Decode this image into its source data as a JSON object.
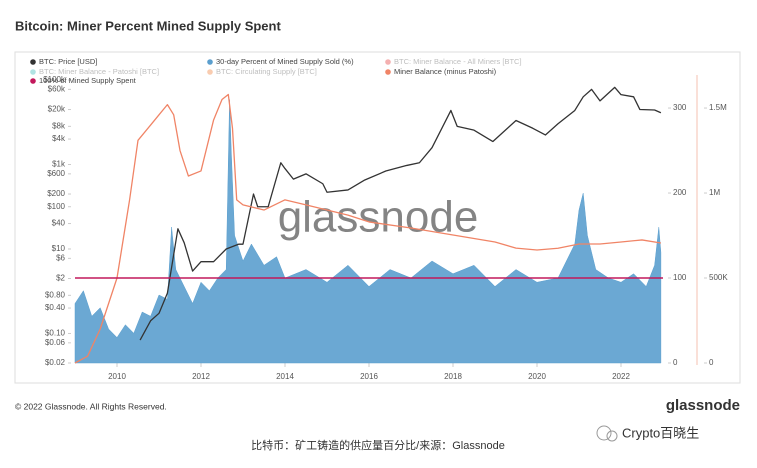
{
  "chart_data": {
    "type": "combo",
    "title": "Bitcoin: Miner Percent Mined Supply Spent",
    "watermark": "glassnode",
    "xlim": [
      2009,
      2023
    ],
    "xticks": [
      2010,
      2012,
      2014,
      2016,
      2018,
      2020,
      2022
    ],
    "ylim": [
      0.02,
      100000
    ],
    "ylog": true,
    "yticks": [
      {
        "value": 0.02,
        "label": "$0.02"
      },
      {
        "value": 0.06,
        "label": "$0.06"
      },
      {
        "value": 0.1,
        "label": "$0.10"
      },
      {
        "value": 0.4,
        "label": "$0.40"
      },
      {
        "value": 0.8,
        "label": "$0.80"
      },
      {
        "value": 2,
        "label": "$2"
      },
      {
        "value": 6,
        "label": "$6"
      },
      {
        "value": 10,
        "label": "$10"
      },
      {
        "value": 40,
        "label": "$40"
      },
      {
        "value": 100,
        "label": "$100"
      },
      {
        "value": 200,
        "label": "$200"
      },
      {
        "value": 600,
        "label": "$600"
      },
      {
        "value": 1000,
        "label": "$1k"
      },
      {
        "value": 4000,
        "label": "$4k"
      },
      {
        "value": 8000,
        "label": "$8k"
      },
      {
        "value": 20000,
        "label": "$20k"
      },
      {
        "value": 60000,
        "label": "$60k"
      },
      {
        "value": 100000,
        "label": "$100k"
      }
    ],
    "y2lim": [
      0,
      333
    ],
    "y2ticks": [
      0,
      100,
      200,
      300
    ],
    "y3lim": [
      0,
      1665000
    ],
    "y3ticks": [
      0,
      {
        "value": 500000,
        "label": "500K"
      },
      {
        "value": 1000000,
        "label": "1M"
      },
      {
        "value": 1500000,
        "label": "1.5M"
      }
    ],
    "series": [
      {
        "name": "BTC: Price [USD]",
        "type": "line",
        "axis": "y",
        "color": "#333333",
        "x": [
          2010.55,
          2010.8,
          2011.0,
          2011.2,
          2011.45,
          2011.6,
          2011.8,
          2012.0,
          2012.3,
          2012.6,
          2012.9,
          2013.0,
          2013.25,
          2013.35,
          2013.6,
          2013.9,
          2014.0,
          2014.2,
          2014.5,
          2014.9,
          2015.0,
          2015.5,
          2015.9,
          2016.4,
          2016.9,
          2017.2,
          2017.5,
          2017.95,
          2018.1,
          2018.5,
          2018.95,
          2019.5,
          2019.9,
          2020.2,
          2020.5,
          2020.9,
          2021.1,
          2021.3,
          2021.5,
          2021.85,
          2022.0,
          2022.3,
          2022.45,
          2022.8,
          2022.95
        ],
        "values": [
          0.07,
          0.2,
          0.3,
          0.9,
          30,
          14,
          3,
          5,
          5,
          10,
          13,
          13,
          200,
          100,
          100,
          1100,
          800,
          450,
          600,
          350,
          220,
          250,
          430,
          700,
          950,
          1100,
          2500,
          19000,
          8000,
          6500,
          3500,
          11000,
          7200,
          5000,
          9200,
          19000,
          40000,
          60000,
          32000,
          67000,
          45000,
          40000,
          20000,
          19500,
          16800
        ]
      },
      {
        "name": "30-day Percent of Mined Supply Sold (%)",
        "type": "area",
        "axis": "y2",
        "color": "#5b9fce",
        "x": [
          2009.0,
          2009.2,
          2009.4,
          2009.6,
          2009.8,
          2010.0,
          2010.2,
          2010.4,
          2010.6,
          2010.8,
          2011.0,
          2011.2,
          2011.3,
          2011.4,
          2011.6,
          2011.8,
          2012.0,
          2012.2,
          2012.4,
          2012.6,
          2012.68,
          2012.72,
          2012.8,
          2013.0,
          2013.2,
          2013.5,
          2013.8,
          2014.0,
          2014.5,
          2015.0,
          2015.5,
          2016.0,
          2016.5,
          2017.0,
          2017.5,
          2018.0,
          2018.5,
          2019.0,
          2019.5,
          2020.0,
          2020.5,
          2020.9,
          2021.0,
          2021.1,
          2021.2,
          2021.4,
          2021.7,
          2022.0,
          2022.3,
          2022.6,
          2022.8,
          2022.9,
          2022.95
        ],
        "values": [
          70,
          85,
          55,
          65,
          40,
          30,
          45,
          35,
          60,
          55,
          80,
          75,
          160,
          110,
          90,
          70,
          95,
          85,
          100,
          110,
          310,
          250,
          150,
          120,
          140,
          115,
          125,
          100,
          110,
          95,
          115,
          90,
          110,
          100,
          120,
          105,
          115,
          90,
          110,
          95,
          100,
          140,
          180,
          200,
          150,
          110,
          100,
          95,
          105,
          90,
          115,
          160,
          130
        ]
      },
      {
        "name": "BTC: Miner Balance - All Miners [BTC]",
        "type": "line",
        "visible": false,
        "color": "#e02020"
      },
      {
        "name": "BTC: Miner Balance - Patoshi [BTC]",
        "type": "line",
        "visible": false,
        "color": "#20b0b0"
      },
      {
        "name": "BTC: Circulating Supply [BTC]",
        "type": "line",
        "visible": false,
        "color": "#f07020"
      },
      {
        "name": "Miner Balance (minus Patoshi)",
        "type": "line",
        "axis": "y3",
        "color": "#f08466",
        "x": [
          2009.0,
          2009.3,
          2009.6,
          2010.0,
          2010.3,
          2010.5,
          2010.8,
          2011.0,
          2011.2,
          2011.35,
          2011.5,
          2011.7,
          2012.0,
          2012.3,
          2012.5,
          2012.65,
          2012.75,
          2012.85,
          2013.0,
          2013.5,
          2014.0,
          2014.5,
          2015.0,
          2015.5,
          2016.0,
          2017.0,
          2018.0,
          2019.0,
          2019.5,
          2020.0,
          2020.5,
          2021.0,
          2021.5,
          2022.0,
          2022.5,
          2022.95
        ],
        "values": [
          0,
          40000,
          200000,
          500000,
          960000,
          1310000,
          1400000,
          1460000,
          1520000,
          1460000,
          1250000,
          1100000,
          1130000,
          1430000,
          1550000,
          1580000,
          1380000,
          960000,
          930000,
          900000,
          960000,
          930000,
          900000,
          870000,
          830000,
          794000,
          753000,
          712000,
          676000,
          665000,
          675000,
          700000,
          700000,
          712000,
          724000,
          706000
        ]
      }
    ],
    "reference_line": {
      "name": "100% of Mined Supply Spent",
      "value": 100,
      "axis": "y2",
      "color": "#c2185b"
    },
    "copyright": "© 2022 Glassnode. All Rights Reserved.",
    "brand": "glassnode",
    "caption": "比特币：矿工铸造的供应量百分比/来源：Glassnode",
    "author": "Crypto百晓生"
  }
}
